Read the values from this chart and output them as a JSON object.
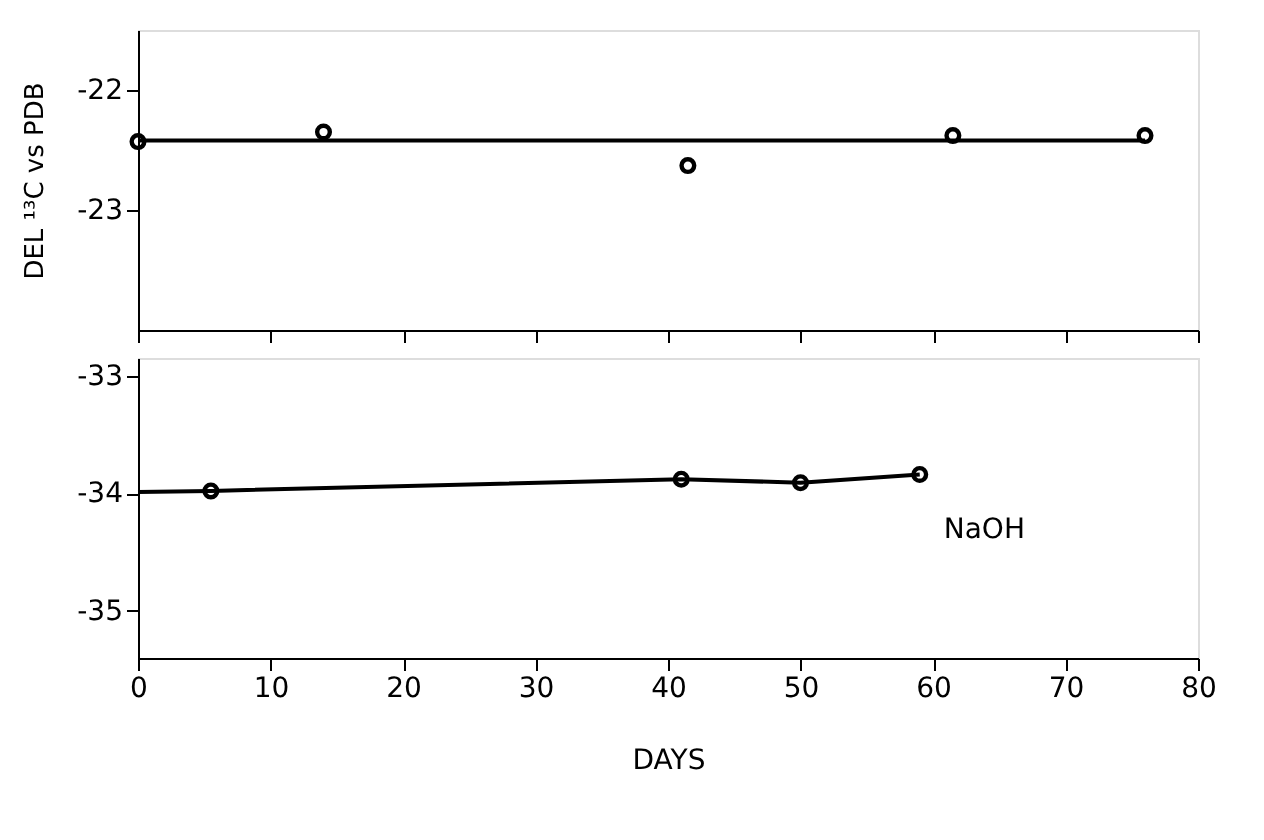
{
  "chart_data": [
    {
      "type": "scatter",
      "ylabel": "DEL ¹³C vs PDB",
      "xlim": [
        0,
        80
      ],
      "xticks": [
        0,
        10,
        20,
        30,
        40,
        50,
        60,
        70,
        80
      ],
      "ylim": [
        -24.0,
        -21.5
      ],
      "yticks": [
        -22,
        -23
      ],
      "tick_labels": "y",
      "grid": false,
      "marker": "circle",
      "series": [
        {
          "type": "line",
          "x": [
            0,
            76
          ],
          "values": [
            -22.42,
            -22.42
          ],
          "color": "#000000",
          "marker": "none",
          "line_style": "solid"
        },
        {
          "x": [
            0,
            14,
            41.5,
            61.5,
            76
          ],
          "values": [
            -22.43,
            -22.35,
            -22.63,
            -22.38,
            -22.38
          ],
          "color": "#000000"
        }
      ]
    },
    {
      "type": "scatter",
      "xlabel": "DAYS",
      "xlim": [
        0,
        80
      ],
      "xticks": [
        0,
        10,
        20,
        30,
        40,
        50,
        60,
        70,
        80
      ],
      "ylim": [
        -35.4,
        -32.85
      ],
      "yticks": [
        -33,
        -34,
        -35
      ],
      "grid": false,
      "marker": "circle",
      "series": [
        {
          "type": "line",
          "x": [
            0,
            5.5,
            41,
            50,
            59
          ],
          "values": [
            -33.99,
            -33.98,
            -33.88,
            -33.91,
            -33.84
          ],
          "color": "#000000",
          "marker": "none",
          "line_style": "solid"
        },
        {
          "name": "NaOH",
          "x": [
            5.5,
            41,
            50,
            59
          ],
          "values": [
            -33.98,
            -33.88,
            -33.91,
            -33.84
          ],
          "color": "#000000"
        }
      ]
    }
  ]
}
